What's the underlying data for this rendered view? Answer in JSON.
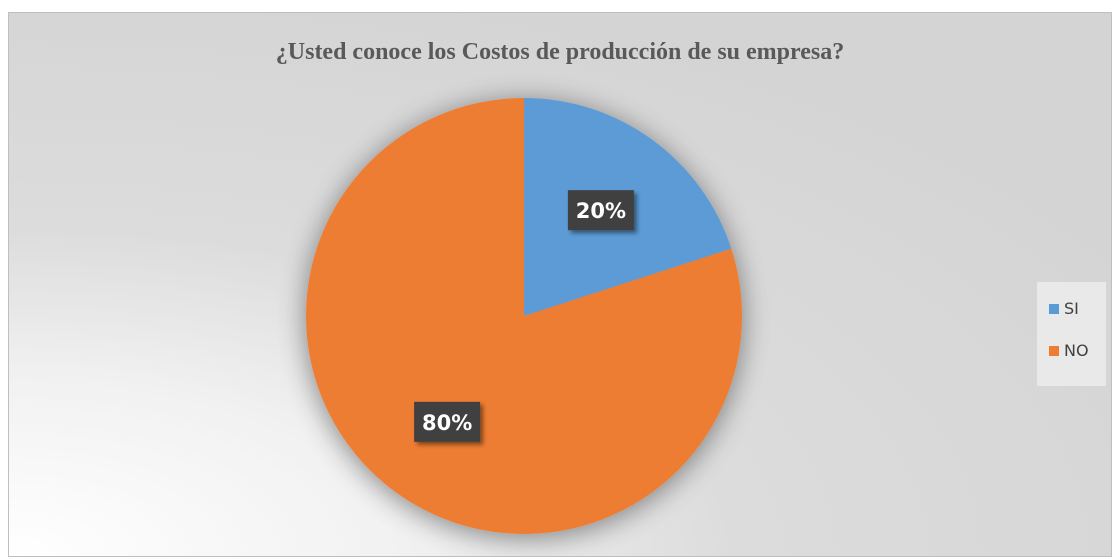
{
  "chart_data": {
    "type": "pie",
    "title": "¿Usted conoce los Costos de producción de su empresa?",
    "categories": [
      "SI",
      "NO"
    ],
    "values": [
      20,
      80
    ],
    "labels": [
      "20%",
      "80%"
    ],
    "colors": [
      "#5b9bd5",
      "#ed7d31"
    ],
    "legend_position": "right",
    "start_angle_deg": 0,
    "direction": "clockwise"
  }
}
